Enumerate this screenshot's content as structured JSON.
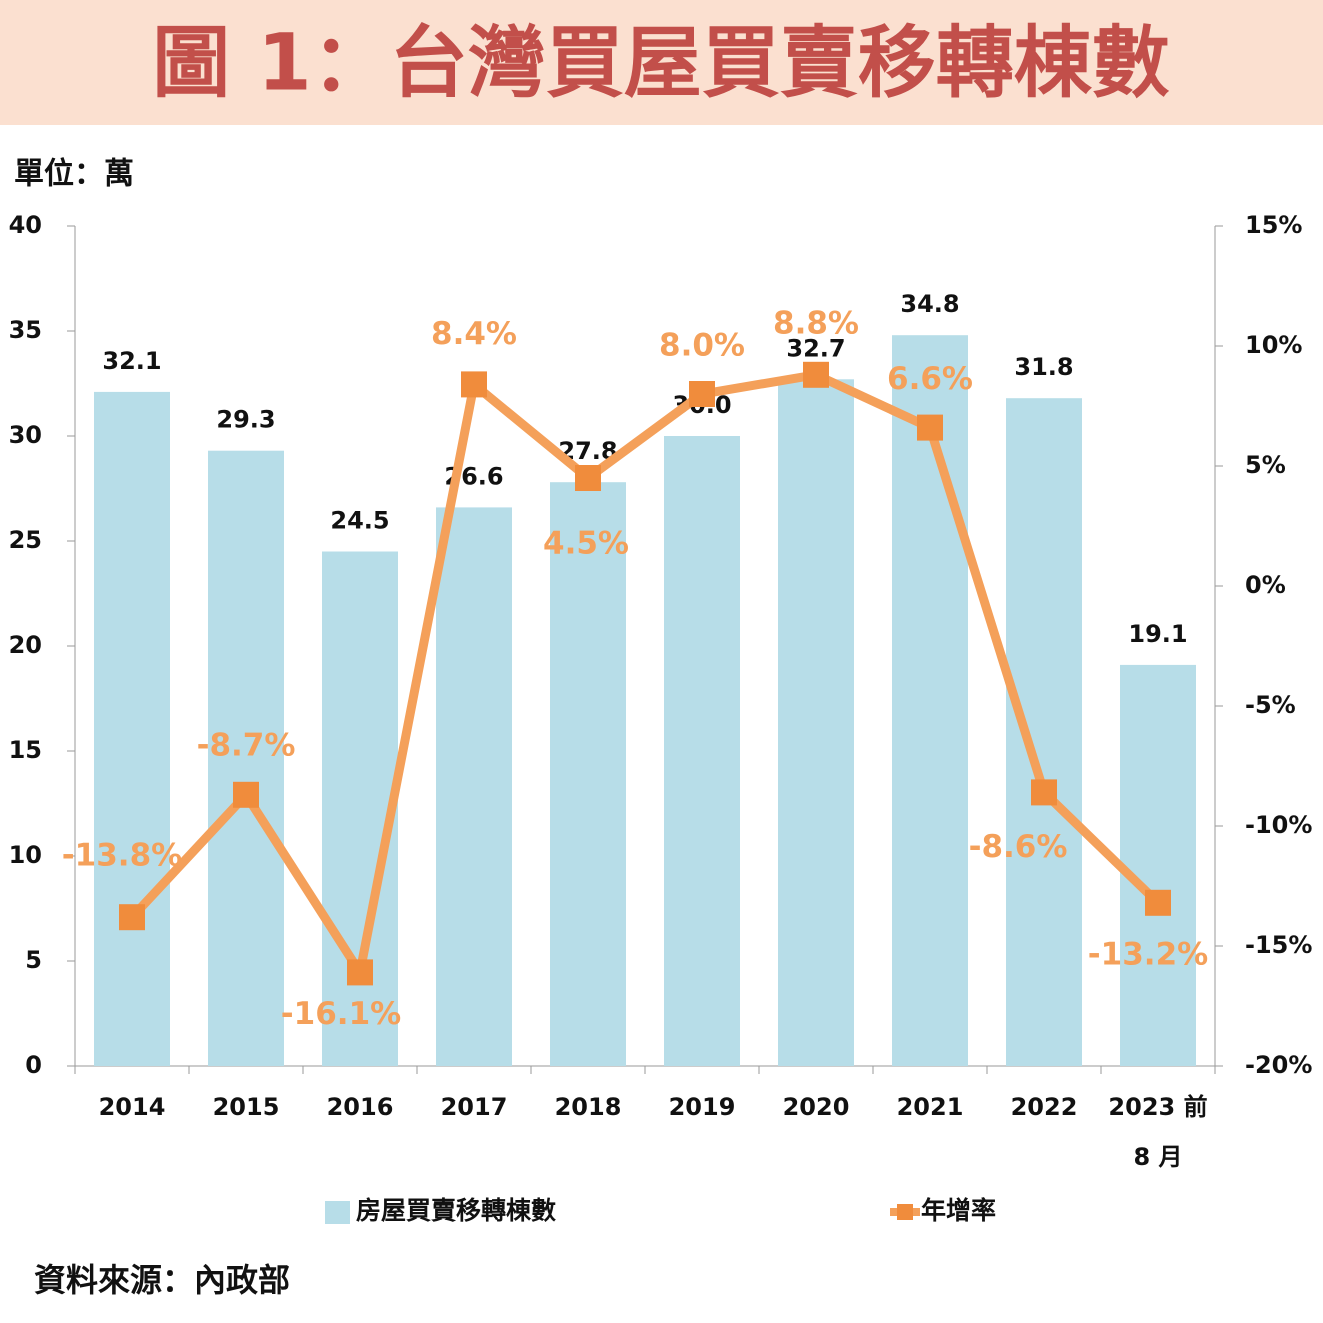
{
  "chart_data": {
    "type": "bar",
    "title": "圖 1：台灣買屋買賣移轉棟數",
    "unit_label": "單位：萬",
    "source": "資料來源：內政部",
    "categories": [
      "2014",
      "2015",
      "2016",
      "2017",
      "2018",
      "2019",
      "2020",
      "2021",
      "2022",
      "2023 前\n8 月"
    ],
    "series": [
      {
        "name": "房屋買賣移轉棟數",
        "type": "bar",
        "color": "#b7dde8",
        "values": [
          32.1,
          29.3,
          24.5,
          26.6,
          27.8,
          30.0,
          32.7,
          34.8,
          31.8,
          19.1
        ],
        "value_labels": [
          "32.1",
          "29.3",
          "24.5",
          "26.6",
          "27.8",
          "30.0",
          "32.7",
          "34.8",
          "31.8",
          "19.1"
        ]
      },
      {
        "name": "年增率",
        "type": "line",
        "axis": "y2",
        "color": "#f4a05a",
        "values": [
          -13.8,
          -8.7,
          -16.1,
          8.4,
          4.5,
          8.0,
          8.8,
          6.6,
          -8.6,
          -13.2
        ],
        "value_labels": [
          "-13.8%",
          "-8.7%",
          "-16.1%",
          "8.4%",
          "4.5%",
          "8.0%",
          "8.8%",
          "6.6%",
          "-8.6%",
          "-13.2%"
        ]
      }
    ],
    "ylim": [
      0,
      40
    ],
    "yticks": [
      0,
      5,
      10,
      15,
      20,
      25,
      30,
      35,
      40
    ],
    "y2lim": [
      -20,
      15
    ],
    "y2ticks": [
      {
        "value": -20,
        "label": "-20%"
      },
      {
        "value": -15,
        "label": "-15%"
      },
      {
        "value": -10,
        "label": "-10%"
      },
      {
        "value": -5,
        "label": "-5%"
      },
      {
        "value": 0,
        "label": "0%"
      },
      {
        "value": 5,
        "label": "5%"
      },
      {
        "value": 10,
        "label": "10%"
      },
      {
        "value": 15,
        "label": "15%"
      }
    ]
  }
}
